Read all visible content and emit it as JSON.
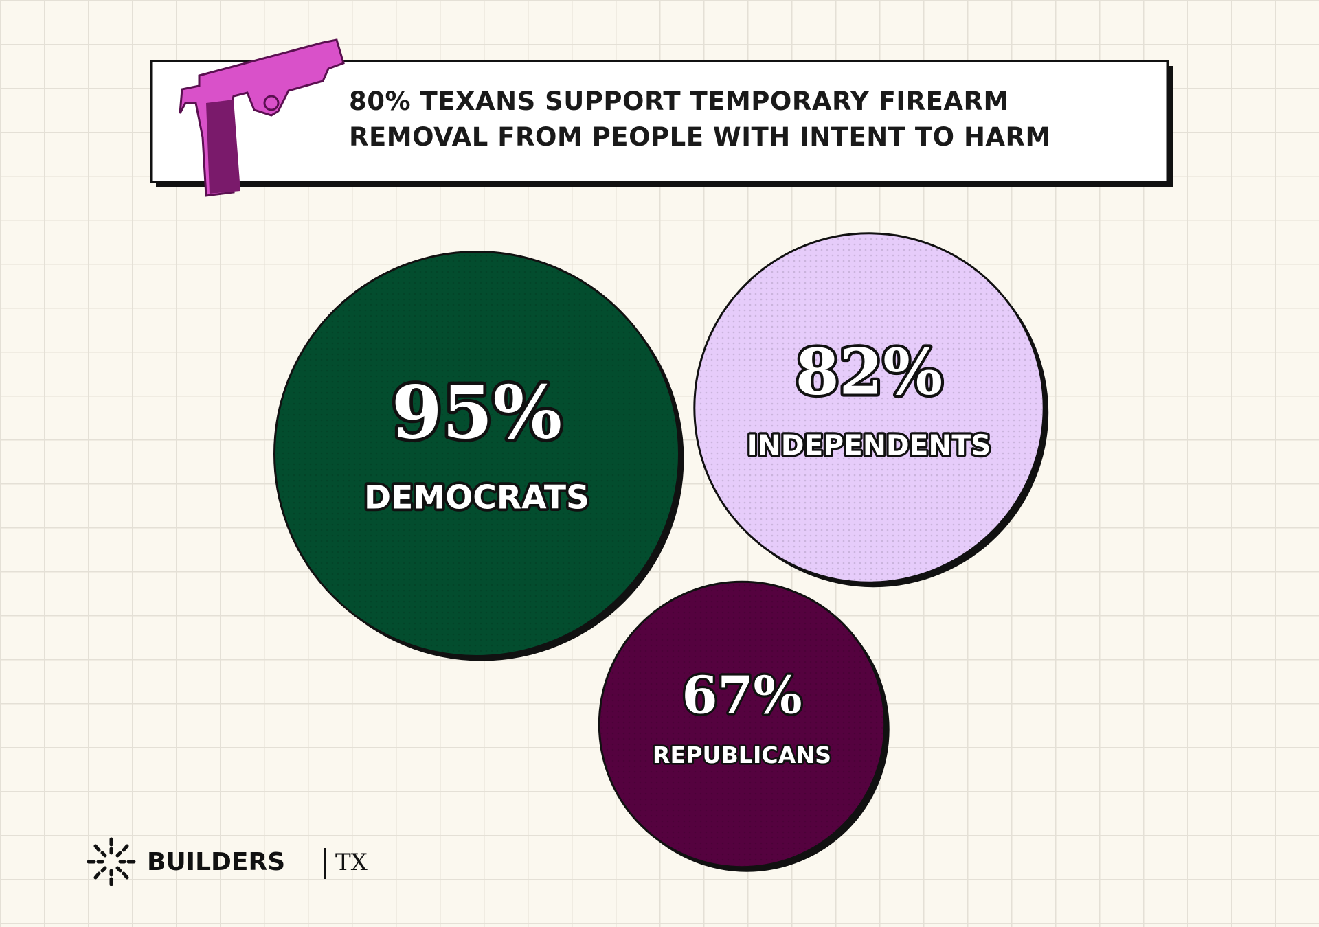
{
  "chart_data": {
    "type": "bubble",
    "title": "80% TEXANS SUPPORT TEMPORARY FIREARM REMOVAL FROM PEOPLE WITH INTENT TO HARM",
    "title_lines": [
      "80% TEXANS SUPPORT TEMPORARY FIREARM",
      "REMOVAL FROM PEOPLE WITH INTENT TO HARM"
    ],
    "categories": [
      "DEMOCRATS",
      "INDEPENDENTS",
      "REPUBLICANS"
    ],
    "values": [
      95,
      82,
      67
    ],
    "value_labels": [
      "95%",
      "82%",
      "67%"
    ],
    "colors": [
      "#034d2e",
      "#e6ccfa",
      "#55023f"
    ],
    "brand": {
      "name": "BUILDERS",
      "region": "TX"
    }
  }
}
